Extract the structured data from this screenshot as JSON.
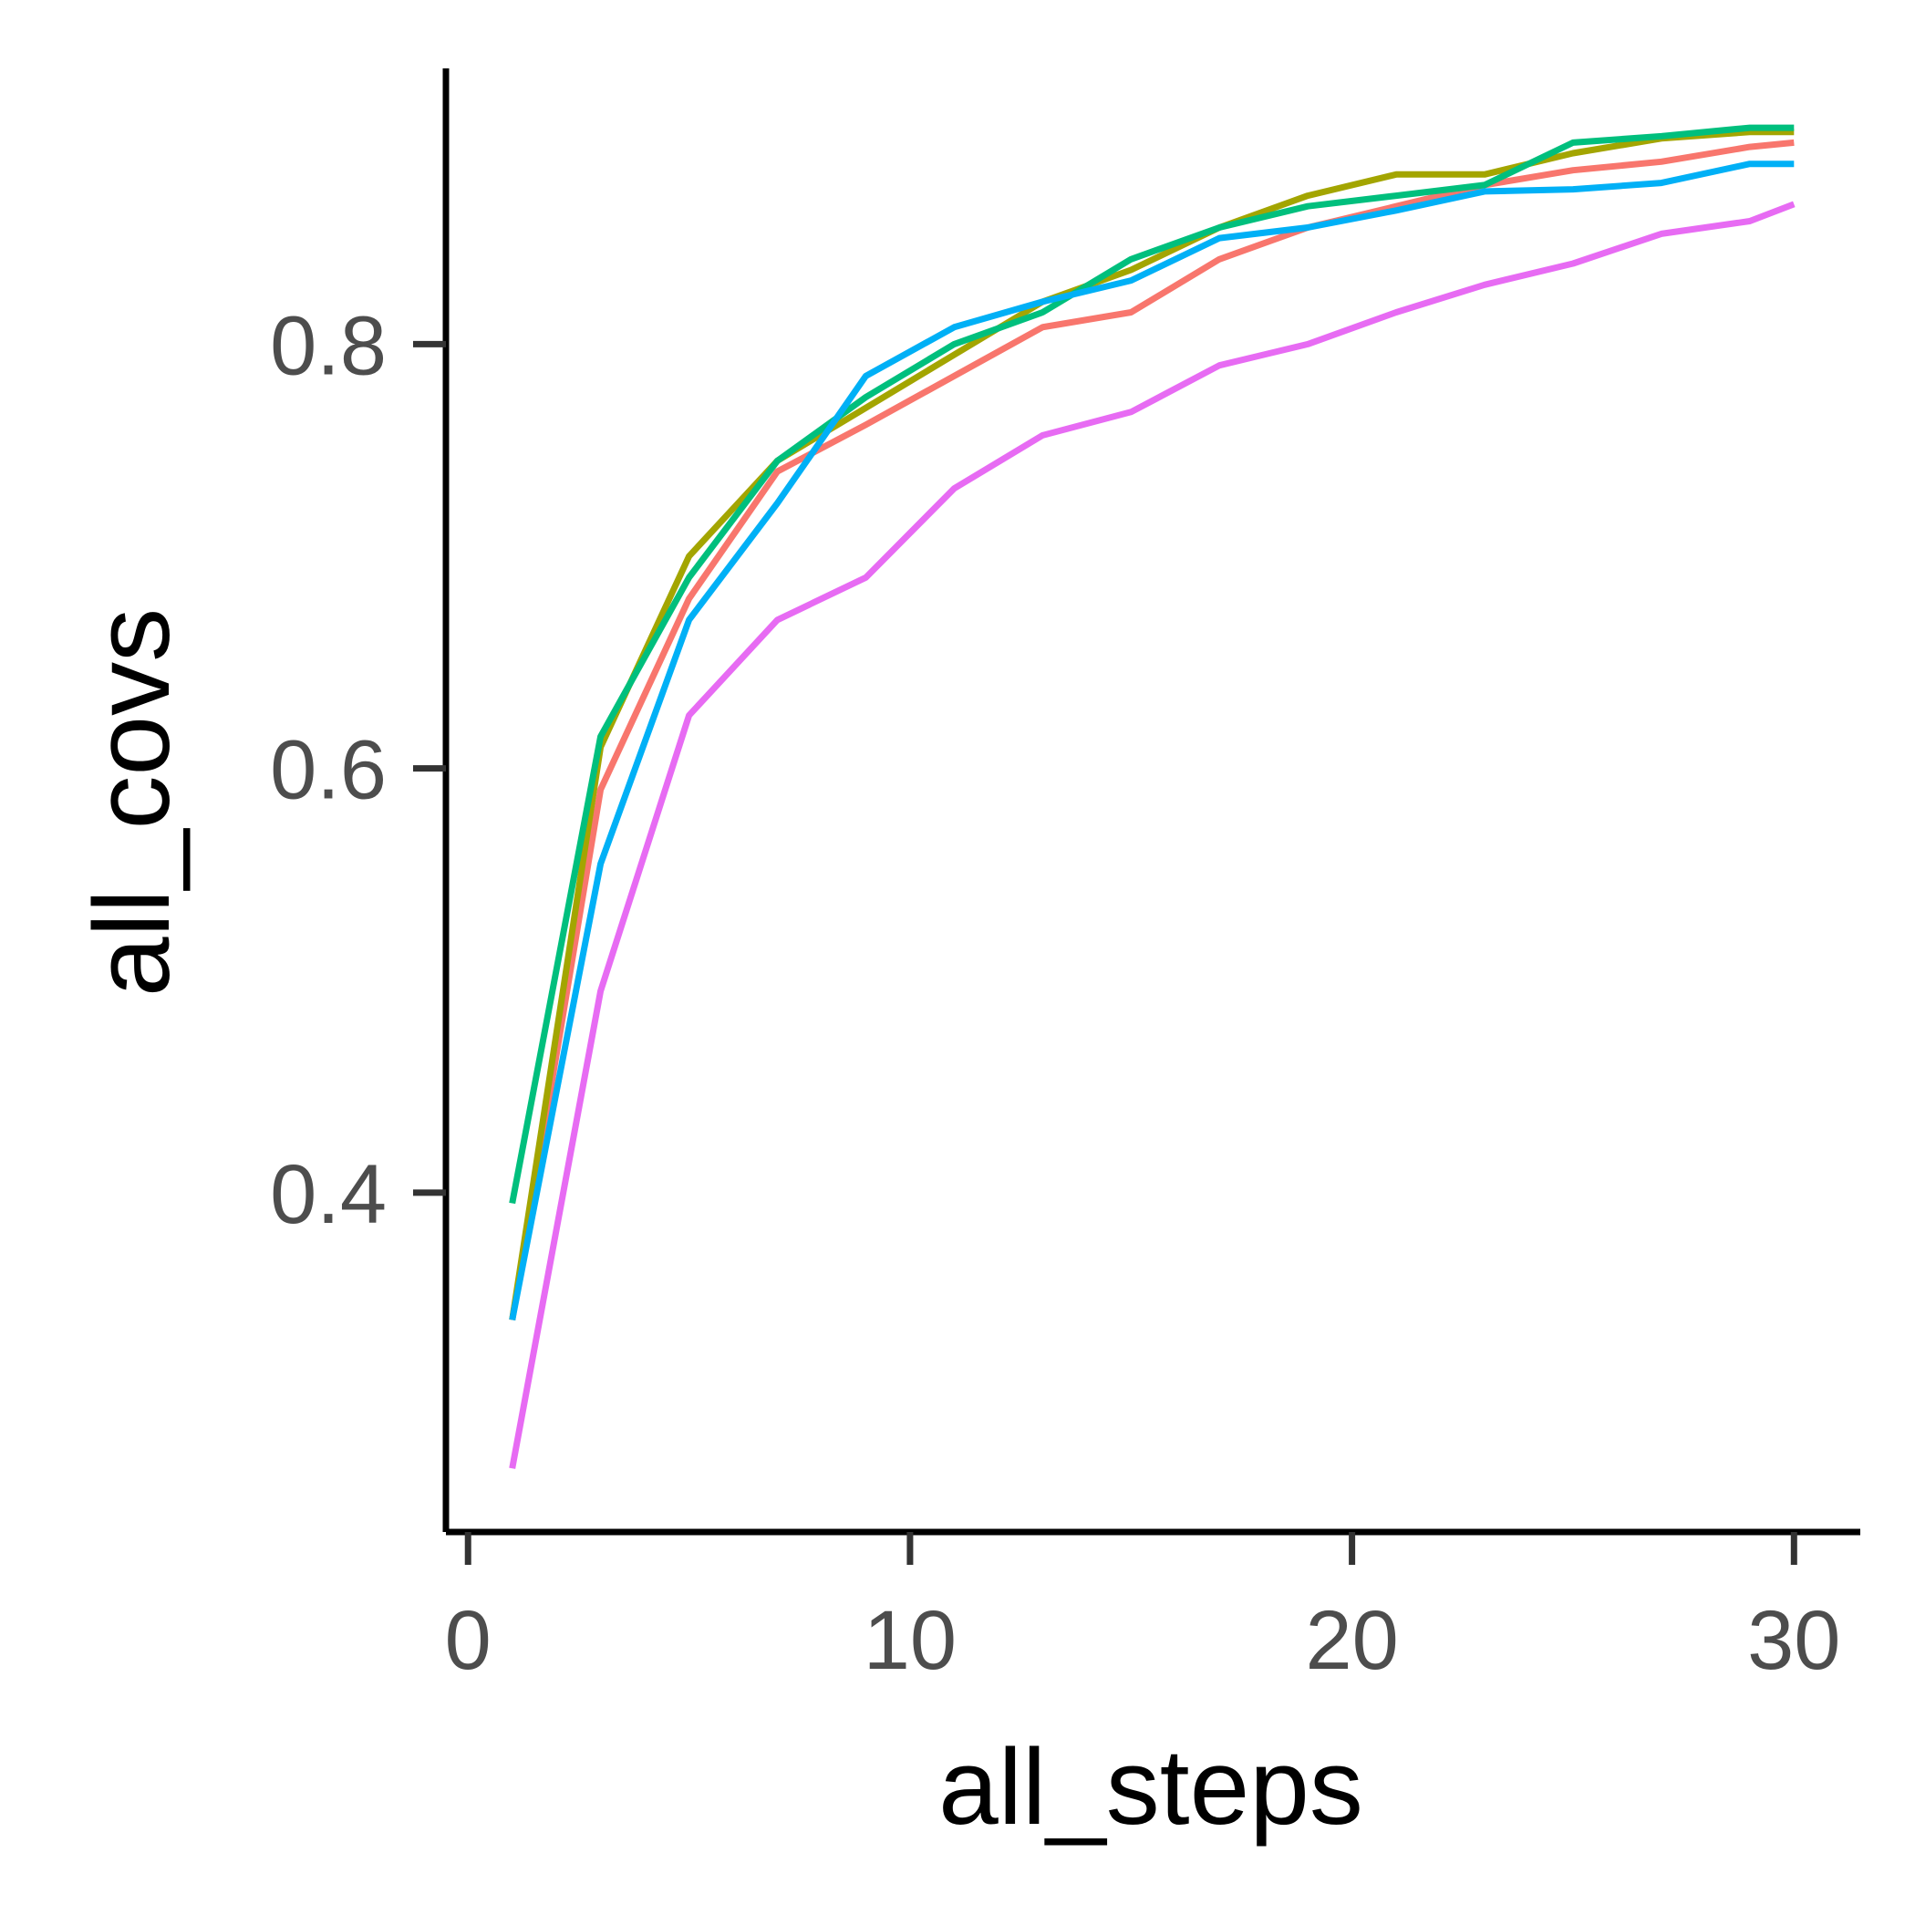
{
  "chart_data": {
    "type": "line",
    "xlabel": "all_steps",
    "ylabel": "all_covs",
    "xlim": [
      -0.5,
      31.5
    ],
    "ylim": [
      0.24,
      0.93
    ],
    "x_ticks": [
      0,
      10,
      20,
      30
    ],
    "x_tick_labels": [
      "0",
      "10",
      "20",
      "30"
    ],
    "y_ticks": [
      0.4,
      0.6,
      0.8
    ],
    "y_tick_labels": [
      "0.4",
      "0.6",
      "0.8"
    ],
    "grid": false,
    "legend": "none",
    "x": [
      1,
      3,
      5,
      7,
      9,
      11,
      13,
      15,
      17,
      19,
      21,
      23,
      25,
      27,
      29,
      30
    ],
    "series": [
      {
        "color": "#F8766D",
        "values": [
          0.34,
          0.59,
          0.68,
          0.74,
          0.762,
          0.785,
          0.808,
          0.815,
          0.84,
          0.855,
          0.865,
          0.875,
          0.882,
          0.886,
          0.893,
          0.895
        ]
      },
      {
        "color": "#A3A500",
        "values": [
          0.34,
          0.61,
          0.7,
          0.745,
          0.77,
          0.795,
          0.82,
          0.835,
          0.855,
          0.87,
          0.88,
          0.88,
          0.89,
          0.897,
          0.9,
          0.9
        ]
      },
      {
        "color": "#00BF7D",
        "values": [
          0.395,
          0.615,
          0.69,
          0.745,
          0.775,
          0.8,
          0.815,
          0.84,
          0.855,
          0.865,
          0.87,
          0.875,
          0.895,
          0.898,
          0.902,
          0.902
        ]
      },
      {
        "color": "#00B0F6",
        "values": [
          0.34,
          0.555,
          0.67,
          0.725,
          0.785,
          0.808,
          0.82,
          0.83,
          0.85,
          0.855,
          0.863,
          0.872,
          0.873,
          0.876,
          0.885,
          0.885
        ]
      },
      {
        "color": "#E76BF3",
        "values": [
          0.27,
          0.495,
          0.625,
          0.67,
          0.69,
          0.732,
          0.757,
          0.768,
          0.79,
          0.8,
          0.815,
          0.828,
          0.838,
          0.852,
          0.858,
          0.866
        ]
      }
    ]
  }
}
